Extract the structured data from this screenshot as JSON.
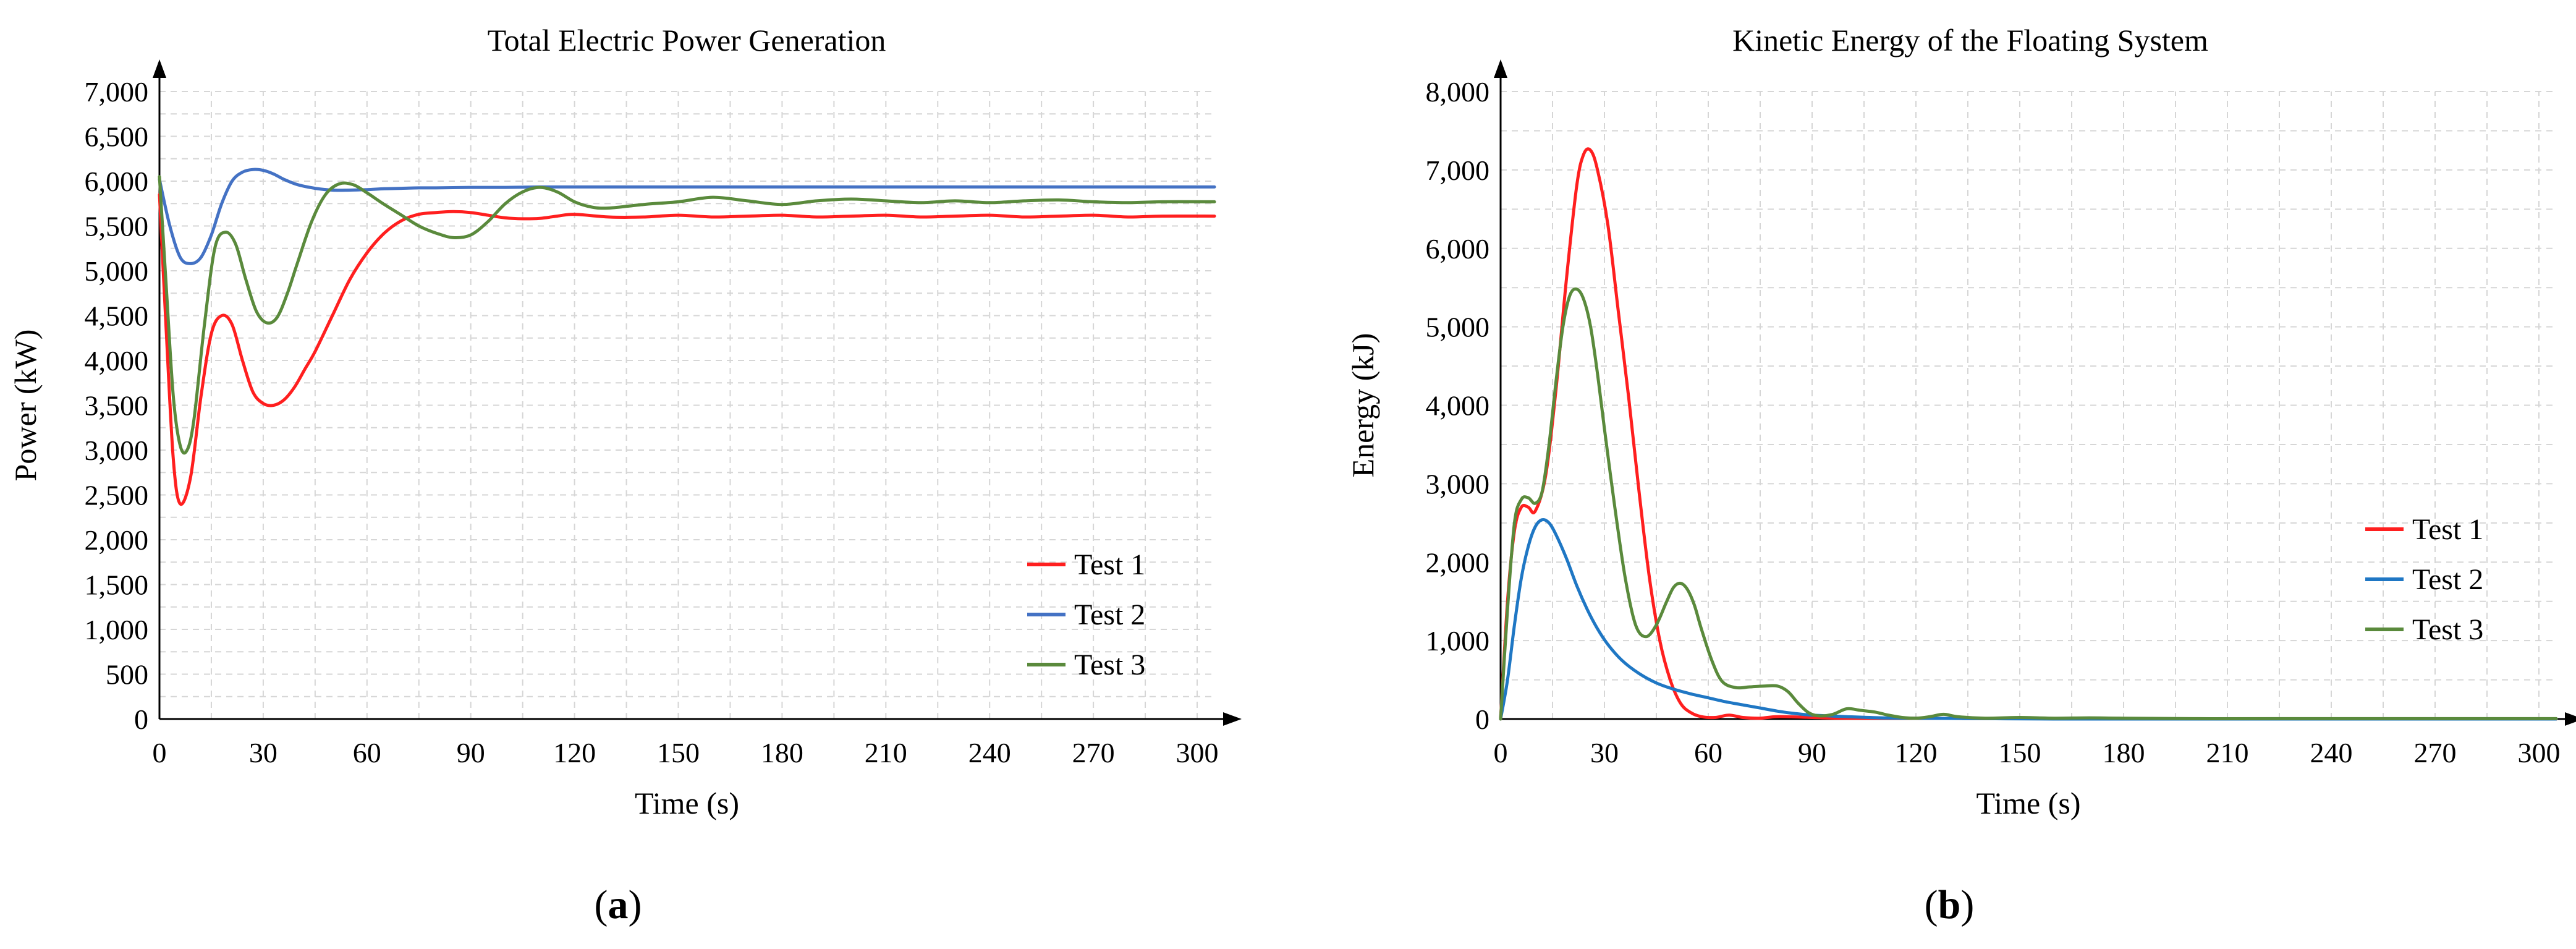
{
  "chart_data": [
    {
      "type": "line",
      "title": "Total Electric Power Generation",
      "xlabel": "Time (s)",
      "ylabel": "Power (kW)",
      "xlim": [
        0,
        305
      ],
      "ylim": [
        0,
        7000
      ],
      "xticks": [
        0,
        30,
        60,
        90,
        120,
        150,
        180,
        210,
        240,
        270,
        300
      ],
      "xtick_labels": [
        "0",
        "30",
        "60",
        "90",
        "120",
        "150",
        "180",
        "210",
        "240",
        "270",
        "300"
      ],
      "yticks": [
        0,
        500,
        1000,
        1500,
        2000,
        2500,
        3000,
        3500,
        4000,
        4500,
        5000,
        5500,
        6000,
        6500,
        7000
      ],
      "ytick_labels": [
        "0",
        "500",
        "1,000",
        "1,500",
        "2,000",
        "2,500",
        "3,000",
        "3,500",
        "4,000",
        "4,500",
        "5,000",
        "5,500",
        "6,000",
        "6,500",
        "7,000"
      ],
      "legend_position": "lower-right",
      "panel_label": "a",
      "series": [
        {
          "name": "Test 1",
          "color": "#ff1f1f",
          "x": [
            0,
            2,
            4,
            6,
            9,
            12,
            15,
            18,
            21,
            24,
            27,
            30,
            33,
            36,
            39,
            42,
            45,
            50,
            55,
            60,
            65,
            70,
            75,
            80,
            85,
            90,
            95,
            100,
            105,
            110,
            115,
            120,
            130,
            140,
            150,
            160,
            170,
            180,
            190,
            200,
            210,
            220,
            230,
            240,
            250,
            260,
            270,
            280,
            290,
            305
          ],
          "y": [
            5850,
            4300,
            2900,
            2400,
            2700,
            3600,
            4300,
            4500,
            4400,
            4000,
            3650,
            3520,
            3500,
            3560,
            3700,
            3900,
            4100,
            4500,
            4900,
            5200,
            5420,
            5560,
            5630,
            5650,
            5660,
            5650,
            5620,
            5590,
            5580,
            5585,
            5610,
            5630,
            5600,
            5600,
            5620,
            5600,
            5610,
            5620,
            5600,
            5610,
            5620,
            5600,
            5610,
            5620,
            5600,
            5610,
            5620,
            5600,
            5610,
            5610
          ]
        },
        {
          "name": "Test 2",
          "color": "#4472c4",
          "x": [
            0,
            3,
            6,
            9,
            12,
            15,
            18,
            21,
            24,
            27,
            30,
            33,
            36,
            40,
            45,
            50,
            55,
            60,
            65,
            70,
            75,
            80,
            90,
            100,
            110,
            120,
            140,
            160,
            180,
            200,
            220,
            240,
            260,
            280,
            305
          ],
          "y": [
            6020,
            5500,
            5150,
            5080,
            5150,
            5400,
            5750,
            6000,
            6100,
            6130,
            6120,
            6080,
            6020,
            5960,
            5920,
            5900,
            5900,
            5905,
            5915,
            5920,
            5925,
            5925,
            5930,
            5930,
            5935,
            5935,
            5935,
            5935,
            5935,
            5935,
            5935,
            5935,
            5935,
            5935,
            5935
          ]
        },
        {
          "name": "Test 3",
          "color": "#5a8a3c",
          "x": [
            0,
            2,
            4,
            6,
            8,
            10,
            13,
            16,
            19,
            22,
            25,
            28,
            31,
            34,
            37,
            40,
            44,
            48,
            52,
            56,
            60,
            65,
            70,
            75,
            80,
            85,
            90,
            95,
            100,
            105,
            110,
            115,
            120,
            125,
            130,
            140,
            150,
            160,
            170,
            180,
            190,
            200,
            210,
            220,
            230,
            240,
            250,
            260,
            270,
            280,
            290,
            305
          ],
          "y": [
            6050,
            4800,
            3600,
            3050,
            3000,
            3350,
            4400,
            5250,
            5430,
            5300,
            4900,
            4550,
            4420,
            4480,
            4750,
            5100,
            5550,
            5850,
            5970,
            5960,
            5870,
            5740,
            5620,
            5500,
            5420,
            5370,
            5400,
            5550,
            5750,
            5880,
            5930,
            5880,
            5770,
            5710,
            5700,
            5740,
            5770,
            5820,
            5780,
            5740,
            5780,
            5800,
            5780,
            5760,
            5780,
            5760,
            5780,
            5790,
            5770,
            5760,
            5770,
            5770
          ]
        }
      ]
    },
    {
      "type": "line",
      "title": "Kinetic Energy of the Floating System",
      "xlabel": "Time (s)",
      "ylabel": "Energy (kJ)",
      "xlim": [
        0,
        305
      ],
      "ylim": [
        0,
        8000
      ],
      "xticks": [
        0,
        30,
        60,
        90,
        120,
        150,
        180,
        210,
        240,
        270,
        300
      ],
      "xtick_labels": [
        "0",
        "30",
        "60",
        "90",
        "120",
        "150",
        "180",
        "210",
        "240",
        "270",
        "300"
      ],
      "yticks": [
        0,
        1000,
        2000,
        3000,
        4000,
        5000,
        6000,
        7000,
        8000
      ],
      "ytick_labels": [
        "0",
        "1,000",
        "2,000",
        "3,000",
        "4,000",
        "5,000",
        "6,000",
        "7,000",
        "8,000"
      ],
      "legend_position": "right",
      "panel_label": "b",
      "series": [
        {
          "name": "Test 1",
          "color": "#ff1f1f",
          "x": [
            0,
            2,
            4,
            6,
            8,
            10,
            13,
            16,
            19,
            22,
            24,
            26,
            28,
            31,
            34,
            37,
            40,
            43,
            46,
            49,
            52,
            55,
            58,
            62,
            66,
            70,
            75,
            80,
            90,
            100,
            120,
            140,
            160,
            200,
            305
          ],
          "y": [
            0,
            1500,
            2400,
            2700,
            2700,
            2650,
            3100,
            4200,
            5600,
            6800,
            7200,
            7250,
            7000,
            6300,
            5200,
            4100,
            2900,
            1800,
            1000,
            500,
            200,
            80,
            30,
            20,
            50,
            20,
            10,
            30,
            20,
            10,
            10,
            5,
            5,
            0,
            0
          ]
        },
        {
          "name": "Test 2",
          "color": "#1f77c4",
          "x": [
            0,
            2,
            4,
            6,
            8,
            10,
            12,
            14,
            16,
            19,
            22,
            25,
            28,
            31,
            35,
            40,
            45,
            50,
            55,
            60,
            65,
            70,
            75,
            80,
            85,
            90,
            100,
            110,
            120,
            140,
            160,
            200,
            305
          ],
          "y": [
            0,
            500,
            1200,
            1800,
            2200,
            2450,
            2540,
            2500,
            2350,
            2050,
            1700,
            1400,
            1150,
            950,
            750,
            580,
            460,
            380,
            320,
            270,
            220,
            180,
            140,
            100,
            70,
            50,
            30,
            15,
            10,
            5,
            0,
            0,
            0
          ]
        },
        {
          "name": "Test 3",
          "color": "#5a8a3c",
          "x": [
            0,
            2,
            4,
            6,
            8,
            10,
            12,
            14,
            16,
            18,
            20,
            22,
            24,
            26,
            28,
            30,
            33,
            36,
            39,
            42,
            45,
            48,
            50,
            52,
            54,
            56,
            58,
            61,
            64,
            68,
            72,
            76,
            80,
            83,
            86,
            89,
            92,
            96,
            100,
            104,
            108,
            112,
            116,
            120,
            124,
            128,
            132,
            140,
            150,
            160,
            170,
            180,
            200,
            230,
            305
          ],
          "y": [
            0,
            1400,
            2500,
            2800,
            2820,
            2750,
            2900,
            3500,
            4300,
            5000,
            5400,
            5480,
            5350,
            5000,
            4400,
            3700,
            2700,
            1800,
            1200,
            1050,
            1200,
            1500,
            1680,
            1730,
            1650,
            1450,
            1150,
            750,
            480,
            400,
            410,
            420,
            420,
            350,
            200,
            80,
            40,
            60,
            130,
            110,
            90,
            50,
            20,
            10,
            30,
            60,
            30,
            10,
            20,
            10,
            15,
            10,
            5,
            5,
            5
          ]
        }
      ]
    }
  ]
}
